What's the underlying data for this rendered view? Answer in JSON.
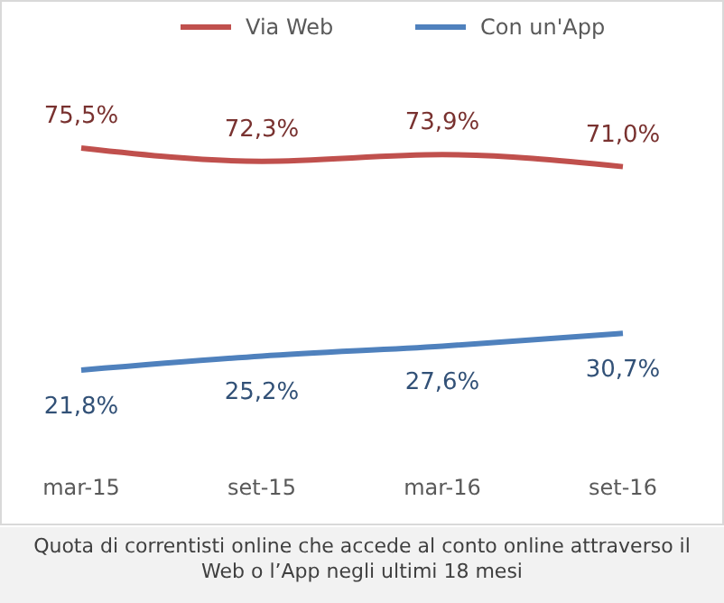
{
  "chart_data": {
    "type": "line",
    "categories": [
      "mar-15",
      "set-15",
      "mar-16",
      "set-16"
    ],
    "series": [
      {
        "name": "Via Web",
        "color": "#c0504d",
        "values": [
          75.5,
          72.3,
          73.9,
          71.0
        ],
        "value_labels": [
          "75,5%",
          "72,3%",
          "73,9%",
          "71,0%"
        ]
      },
      {
        "name": "Con un'App",
        "color": "#4f81bd",
        "values": [
          21.8,
          25.2,
          27.6,
          30.7
        ],
        "value_labels": [
          "21,8%",
          "25,2%",
          "27,6%",
          "30,7%"
        ]
      }
    ],
    "legend": "top",
    "grid": false,
    "marker": "none",
    "line_style": "solid",
    "annotations": [
      "Quota di correntisti online che accede al conto online attraverso il Web o l’App negli ultimi 18 mesi"
    ]
  }
}
